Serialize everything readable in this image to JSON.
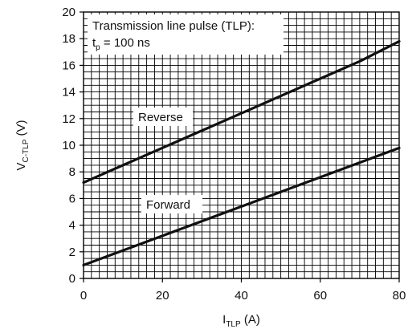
{
  "chart_data": {
    "type": "line",
    "title": "",
    "xlabel": {
      "main": "I",
      "sub": "TLP",
      "unit": " (A)"
    },
    "ylabel": {
      "main": "V",
      "sub": "C-TLP",
      "unit": " (V)"
    },
    "xlim": [
      0,
      80
    ],
    "ylim": [
      0,
      20
    ],
    "xticks": [
      0,
      20,
      40,
      60,
      80
    ],
    "yticks": [
      0,
      2,
      4,
      6,
      8,
      10,
      12,
      14,
      16,
      18,
      20
    ],
    "grid": true,
    "x_minor_step": 2,
    "y_minor_step": 0.5,
    "annotation": {
      "line1": "Transmission line pulse (TLP):",
      "line2_main": "t",
      "line2_sub": "p",
      "line2_rest": " = 100 ns"
    },
    "series": [
      {
        "name": "Reverse",
        "x": [
          0,
          10,
          20,
          30,
          40,
          50,
          60,
          70,
          80
        ],
        "y": [
          7.2,
          8.5,
          9.8,
          11.1,
          12.4,
          13.7,
          15.0,
          16.3,
          17.8
        ]
      },
      {
        "name": "Forward",
        "x": [
          0,
          10,
          20,
          30,
          40,
          50,
          60,
          70,
          80
        ],
        "y": [
          1.0,
          2.1,
          3.2,
          4.3,
          5.4,
          6.5,
          7.6,
          8.7,
          9.8
        ]
      }
    ]
  }
}
